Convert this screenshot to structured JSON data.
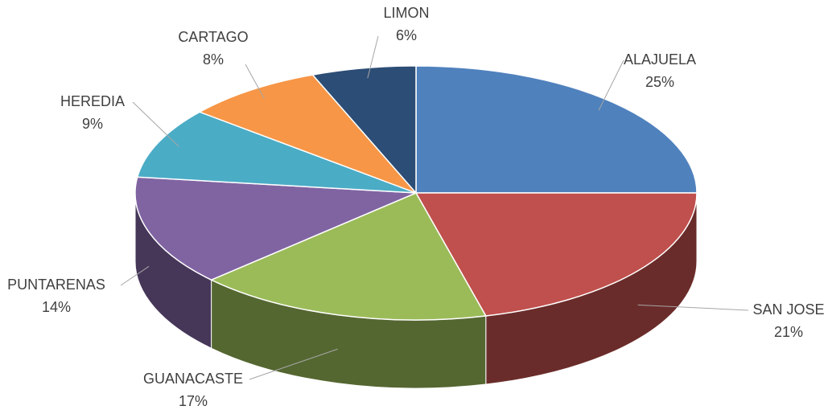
{
  "chart_data": {
    "type": "pie",
    "categories": [
      "ALAJUELA",
      "SAN JOSE",
      "GUANACASTE",
      "PUNTARENAS",
      "HEREDIA",
      "CARTAGO",
      "LIMON"
    ],
    "values": [
      25,
      21,
      17,
      14,
      9,
      8,
      6
    ],
    "value_labels": [
      "25%",
      "21%",
      "17%",
      "14%",
      "9%",
      "8%",
      "6%"
    ],
    "colors": [
      "#4f81bd",
      "#c0504d",
      "#9bbb59",
      "#8064a2",
      "#4bacc6",
      "#f79646",
      "#2c4d75"
    ]
  }
}
